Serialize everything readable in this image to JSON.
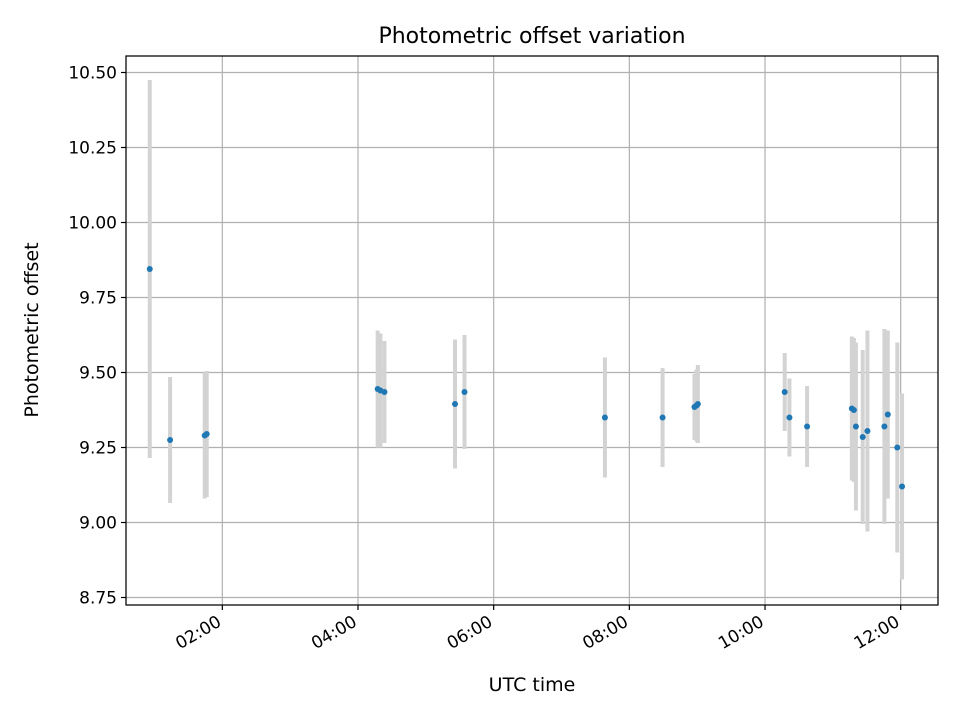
{
  "chart_data": {
    "type": "scatter",
    "title": "Photometric offset variation",
    "xlabel": "UTC time",
    "ylabel": "Photometric offset",
    "x_unit": "hours UTC",
    "xlim": [
      0.58,
      12.55
    ],
    "ylim": [
      8.725,
      10.555
    ],
    "x_ticks": [
      {
        "value": 2,
        "label": "02:00"
      },
      {
        "value": 4,
        "label": "04:00"
      },
      {
        "value": 6,
        "label": "06:00"
      },
      {
        "value": 8,
        "label": "08:00"
      },
      {
        "value": 10,
        "label": "10:00"
      },
      {
        "value": 12,
        "label": "12:00"
      }
    ],
    "y_ticks": [
      {
        "value": 8.75,
        "label": "8.75"
      },
      {
        "value": 9.0,
        "label": "9.00"
      },
      {
        "value": 9.25,
        "label": "9.25"
      },
      {
        "value": 9.5,
        "label": "9.50"
      },
      {
        "value": 9.75,
        "label": "9.75"
      },
      {
        "value": 10.0,
        "label": "10.00"
      },
      {
        "value": 10.25,
        "label": "10.25"
      },
      {
        "value": 10.5,
        "label": "10.50"
      }
    ],
    "grid": true,
    "colors": {
      "point": "#1f77b4",
      "errorbar": "#d3d3d3",
      "grid": "#b0b0b0"
    },
    "series": [
      {
        "points": [
          {
            "x": 0.93,
            "y": 9.845,
            "err": 0.63
          },
          {
            "x": 1.23,
            "y": 9.275,
            "err": 0.21
          },
          {
            "x": 1.74,
            "y": 9.29,
            "err": 0.21
          },
          {
            "x": 1.77,
            "y": 9.295,
            "err": 0.21
          },
          {
            "x": 4.29,
            "y": 9.445,
            "err": 0.195
          },
          {
            "x": 4.33,
            "y": 9.44,
            "err": 0.19
          },
          {
            "x": 4.39,
            "y": 9.435,
            "err": 0.17
          },
          {
            "x": 5.43,
            "y": 9.395,
            "err": 0.215
          },
          {
            "x": 5.57,
            "y": 9.435,
            "err": 0.19
          },
          {
            "x": 7.64,
            "y": 9.35,
            "err": 0.2
          },
          {
            "x": 8.49,
            "y": 9.35,
            "err": 0.165
          },
          {
            "x": 8.96,
            "y": 9.385,
            "err": 0.11
          },
          {
            "x": 8.99,
            "y": 9.39,
            "err": 0.12
          },
          {
            "x": 9.01,
            "y": 9.395,
            "err": 0.13
          },
          {
            "x": 10.29,
            "y": 9.435,
            "err": 0.13
          },
          {
            "x": 10.36,
            "y": 9.35,
            "err": 0.13
          },
          {
            "x": 10.62,
            "y": 9.32,
            "err": 0.135
          },
          {
            "x": 11.28,
            "y": 9.38,
            "err": 0.24
          },
          {
            "x": 11.31,
            "y": 9.375,
            "err": 0.24
          },
          {
            "x": 11.34,
            "y": 9.32,
            "err": 0.28
          },
          {
            "x": 11.44,
            "y": 9.285,
            "err": 0.29
          },
          {
            "x": 11.51,
            "y": 9.305,
            "err": 0.335
          },
          {
            "x": 11.76,
            "y": 9.32,
            "err": 0.325
          },
          {
            "x": 11.81,
            "y": 9.36,
            "err": 0.28
          },
          {
            "x": 11.95,
            "y": 9.25,
            "err": 0.35
          },
          {
            "x": 12.02,
            "y": 9.12,
            "err": 0.31
          }
        ]
      }
    ]
  }
}
